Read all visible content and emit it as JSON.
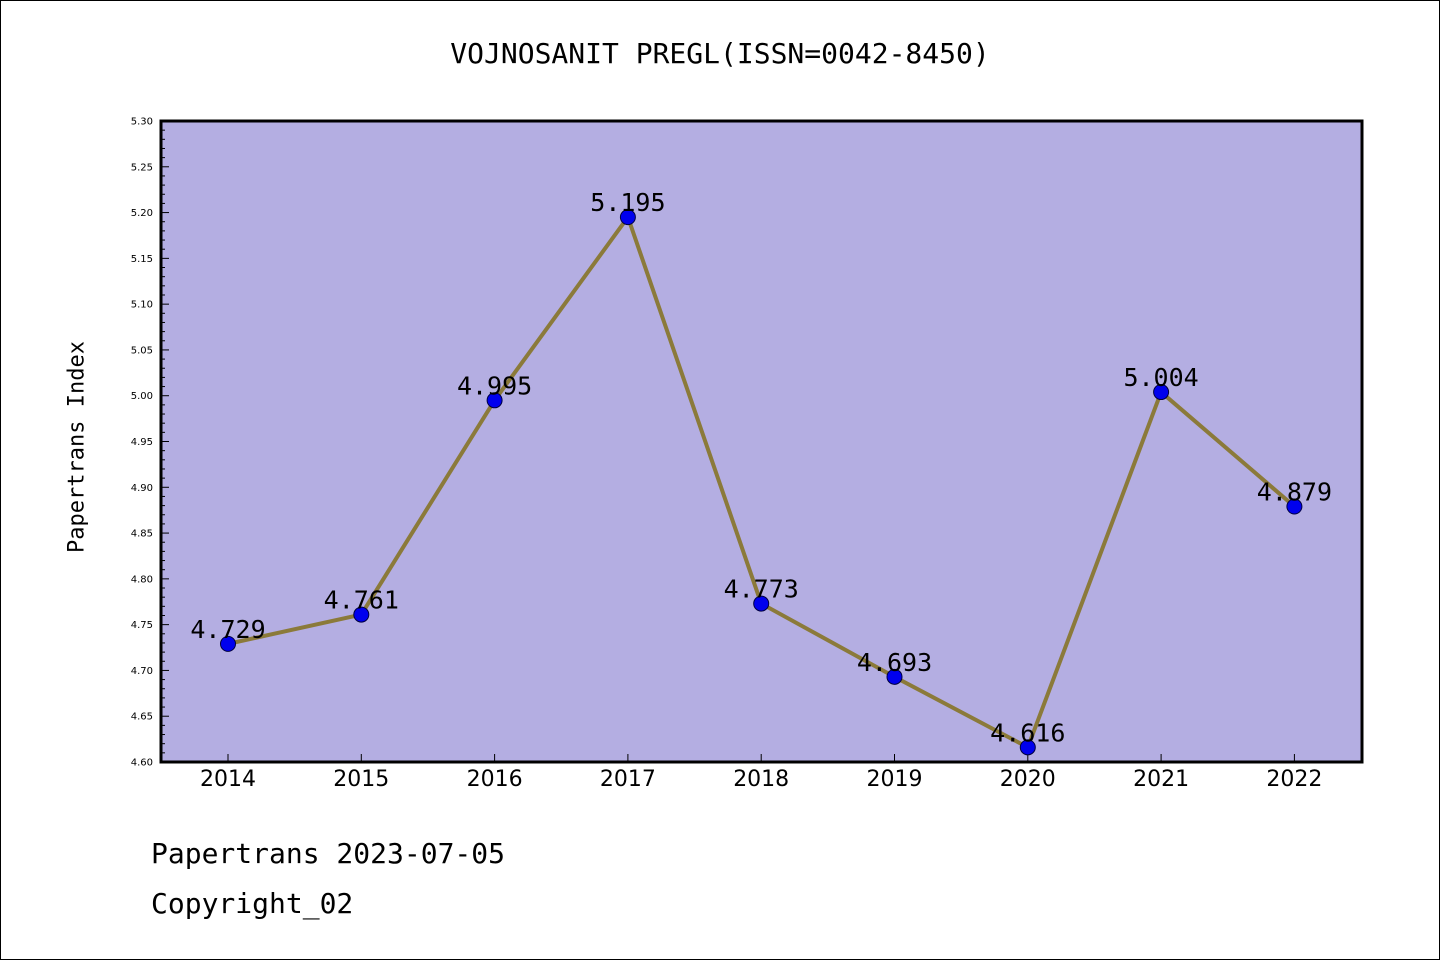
{
  "title": "VOJNOSANIT PREGL(ISSN=0042-8450)",
  "footer": {
    "line1": "Papertrans 2023-07-05",
    "line2": "Copyright_02"
  },
  "colors": {
    "plot_background": "#b4aee2",
    "line": "#8b7a3a",
    "marker": "#0000ee",
    "axis": "#000000"
  },
  "chart_data": {
    "type": "line",
    "title": "VOJNOSANIT PREGL(ISSN=0042-8450)",
    "xlabel": "",
    "ylabel": "Papertrans Index",
    "categories": [
      "2014",
      "2015",
      "2016",
      "2017",
      "2018",
      "2019",
      "2020",
      "2021",
      "2022"
    ],
    "series": [
      {
        "values": [
          4.729,
          4.761,
          4.995,
          5.195,
          4.773,
          4.693,
          4.616,
          5.004,
          4.879
        ],
        "data_labels": [
          "4.729",
          "4.761",
          "4.995",
          "5.195",
          "4.773",
          "4.693",
          "4.616",
          "5.004",
          "4.879"
        ]
      }
    ],
    "ylim": [
      4.6,
      5.3
    ],
    "yticks": [
      "4.60",
      "4.65",
      "4.70",
      "4.75",
      "4.80",
      "4.85",
      "4.90",
      "4.95",
      "5.00",
      "5.05",
      "5.10",
      "5.15",
      "5.20",
      "5.25",
      "5.30"
    ],
    "grid": false,
    "legend": "none"
  }
}
